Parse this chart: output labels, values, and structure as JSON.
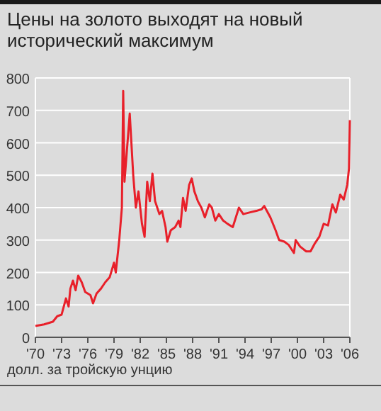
{
  "chart_data": {
    "type": "line",
    "title": "Цены на золото выходят на новый исторический максимум",
    "xlabel": "долл. за тройскую унцию",
    "x": [
      1970,
      1971,
      1972,
      1972.5,
      1973,
      1973.5,
      1973.8,
      1974,
      1974.3,
      1974.6,
      1974.9,
      1975.3,
      1975.7,
      1976.3,
      1976.6,
      1977,
      1977.5,
      1978,
      1978.5,
      1979,
      1979.2,
      1979.6,
      1979.9,
      1980.05,
      1980.2,
      1980.4,
      1980.8,
      1981.2,
      1981.5,
      1981.8,
      1982.2,
      1982.5,
      1982.8,
      1983.1,
      1983.4,
      1983.7,
      1984.2,
      1984.5,
      1984.9,
      1985.1,
      1985.5,
      1986,
      1986.4,
      1986.6,
      1986.9,
      1987.2,
      1987.6,
      1987.9,
      1988.2,
      1988.6,
      1989,
      1989.4,
      1989.9,
      1990.2,
      1990.6,
      1991,
      1991.5,
      1992,
      1992.6,
      1993.3,
      1993.8,
      1994.5,
      1995.3,
      1995.9,
      1996.2,
      1996.9,
      1997.5,
      1997.9,
      1998.5,
      1999,
      1999.6,
      1999.8,
      2000.3,
      2001,
      2001.5,
      2002,
      2002.5,
      2003,
      2003.5,
      2004,
      2004.4,
      2004.9,
      2005.3,
      2005.7,
      2005.9,
      2006
    ],
    "series": [
      {
        "color": "#e8202a",
        "values": [
          35,
          40,
          48,
          65,
          70,
          120,
          95,
          150,
          175,
          145,
          190,
          170,
          140,
          130,
          105,
          135,
          150,
          170,
          185,
          230,
          200,
          300,
          400,
          760,
          480,
          550,
          690,
          500,
          400,
          450,
          350,
          310,
          480,
          420,
          505,
          420,
          380,
          390,
          340,
          295,
          330,
          340,
          360,
          340,
          430,
          390,
          470,
          490,
          450,
          420,
          400,
          370,
          410,
          400,
          360,
          380,
          360,
          350,
          340,
          400,
          380,
          385,
          390,
          395,
          405,
          370,
          330,
          300,
          295,
          285,
          260,
          300,
          280,
          265,
          265,
          290,
          310,
          350,
          345,
          410,
          385,
          440,
          425,
          470,
          520,
          670
        ]
      }
    ],
    "xlim": [
      1970,
      2006
    ],
    "xticks": [
      {
        "value": 1970,
        "label": "'70"
      },
      {
        "value": 1973,
        "label": "'73"
      },
      {
        "value": 1976,
        "label": "'76"
      },
      {
        "value": 1979,
        "label": "'79"
      },
      {
        "value": 1982,
        "label": "'82"
      },
      {
        "value": 1985,
        "label": "'85"
      },
      {
        "value": 1988,
        "label": "'88"
      },
      {
        "value": 1991,
        "label": "'91"
      },
      {
        "value": 1994,
        "label": "'94"
      },
      {
        "value": 1997,
        "label": "'97"
      },
      {
        "value": 2000,
        "label": "'00"
      },
      {
        "value": 2003,
        "label": "'03"
      },
      {
        "value": 2006,
        "label": "'06"
      }
    ],
    "ylim": [
      0,
      800
    ],
    "yticks": [
      0,
      100,
      200,
      300,
      400,
      500,
      600,
      700,
      800
    ],
    "grid": "y"
  }
}
